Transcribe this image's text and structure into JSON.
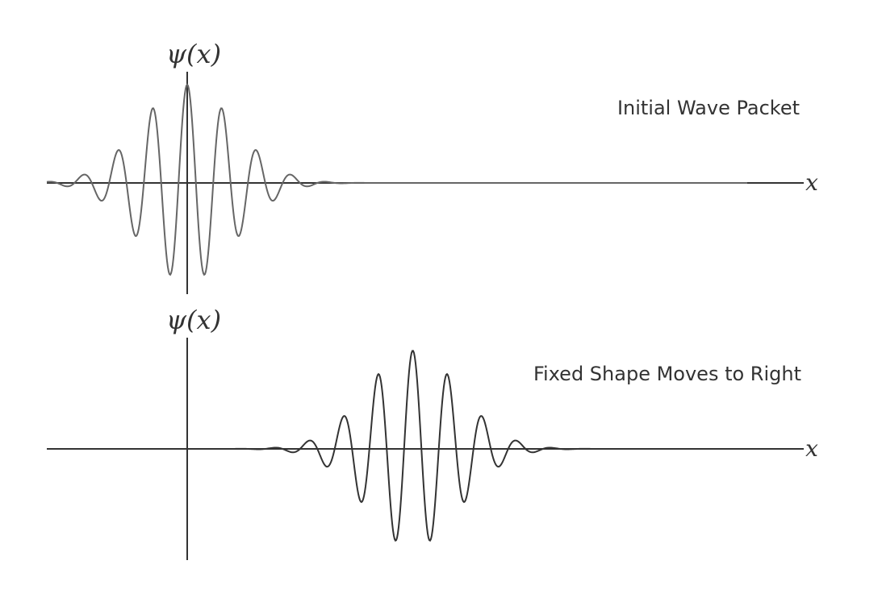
{
  "panels": [
    {
      "name": "initial",
      "caption": "Initial Wave Packet",
      "y_label": "ψ(x)",
      "x_label": "x",
      "center": 0,
      "curve_color": "#666666"
    },
    {
      "name": "moved",
      "caption": "Fixed Shape Moves to Right",
      "y_label": "ψ(x)",
      "x_label": "x",
      "center": 6.5,
      "curve_color": "#333333"
    }
  ],
  "axis_color": "#333333",
  "wave": {
    "wavelength": 1,
    "envelope_width": 1.9,
    "x_range": [
      -4,
      16
    ]
  }
}
